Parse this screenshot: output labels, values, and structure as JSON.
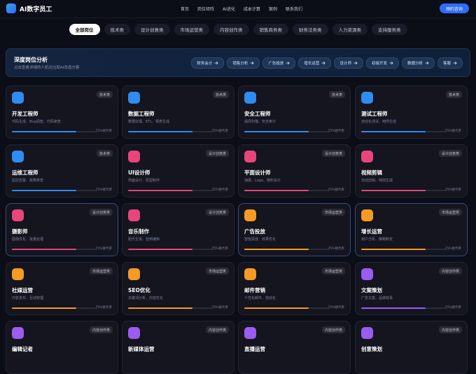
{
  "nav": {
    "logo": "AI数字员工",
    "links": [
      "首页",
      "岗位矩阵",
      "AI进化",
      "成本计算",
      "案例",
      "联系我们"
    ],
    "cta": "预约咨询"
  },
  "tabs": [
    "全部岗位",
    "技术类",
    "设计创意类",
    "市场运营类",
    "内容创作类",
    "销售商务类",
    "财务法务类",
    "人力资源类",
    "支持服务类"
  ],
  "banner": {
    "title": "深度岗位分析",
    "subtitle": "点击查看详细的人机对比和AI改造方案",
    "chips": [
      "财务会计",
      "销售分析",
      "广告投放",
      "增长运营",
      "设计师",
      "初级开发",
      "数据分析",
      "客服"
    ]
  },
  "cards": [
    {
      "name": "开发工程师",
      "category": "技术类",
      "desc": "代码生成、Bug调查、代码审查",
      "rate": 75,
      "rate_label": "75%替代率",
      "color": "#2f8cf0"
    },
    {
      "name": "数据工程师",
      "category": "技术类",
      "desc": "数据处理、ETL、报表生成",
      "rate": 75,
      "rate_label": "75%替代率",
      "color": "#2f8cf0"
    },
    {
      "name": "安全工程师",
      "category": "技术类",
      "desc": "漏洞扫描、安全审计",
      "rate": 75,
      "rate_label": "75%替代率",
      "color": "#2f8cf0"
    },
    {
      "name": "测试工程师",
      "category": "技术类",
      "desc": "自动化测试、用例生成",
      "rate": 75,
      "rate_label": "75%替代率",
      "color": "#2f8cf0"
    },
    {
      "name": "运维工程师",
      "category": "技术类",
      "desc": "监控告警、故障排查",
      "rate": 75,
      "rate_label": "75%替代率",
      "color": "#2f8cf0"
    },
    {
      "name": "UI设计师",
      "category": "设计创意类",
      "desc": "界面设计、原型制作",
      "rate": 75,
      "rate_label": "75%替代率",
      "color": "#e8457a"
    },
    {
      "name": "平面设计师",
      "category": "设计创意类",
      "desc": "海报、Logo、物料设计",
      "rate": 75,
      "rate_label": "75%替代率",
      "color": "#e8457a"
    },
    {
      "name": "视频剪辑",
      "category": "设计创意类",
      "desc": "自动剪辑、特效生成",
      "rate": 75,
      "rate_label": "75%替代率",
      "color": "#e8457a"
    },
    {
      "name": "摄影师",
      "category": "设计创意类",
      "desc": "图像优化、批量处理",
      "rate": 75,
      "rate_label": "75%替代率",
      "color": "#e8457a"
    },
    {
      "name": "音乐制作",
      "category": "设计创意类",
      "desc": "配乐生成、音频编辑",
      "rate": 75,
      "rate_label": "75%替代率",
      "color": "#e8457a"
    },
    {
      "name": "广告投放",
      "category": "市场运营类",
      "desc": "智能投放、效果优化",
      "rate": 75,
      "rate_label": "75%替代率",
      "color": "#f59a23"
    },
    {
      "name": "增长运营",
      "category": "市场运营类",
      "desc": "用户分析、策略制定",
      "rate": 75,
      "rate_label": "75%替代率",
      "color": "#f59a23"
    },
    {
      "name": "社媒运营",
      "category": "市场运营类",
      "desc": "内容发布、互动管理",
      "rate": 75,
      "rate_label": "75%替代率",
      "color": "#f59a23"
    },
    {
      "name": "SEO优化",
      "category": "市场运营类",
      "desc": "关键词分析、内容优化",
      "rate": 75,
      "rate_label": "75%替代率",
      "color": "#f59a23"
    },
    {
      "name": "邮件营销",
      "category": "市场运营类",
      "desc": "个性化邮件、自动化",
      "rate": 75,
      "rate_label": "75%替代率",
      "color": "#f59a23"
    },
    {
      "name": "文案策划",
      "category": "内容创作类",
      "desc": "广告文案、品牌故事",
      "rate": 75,
      "rate_label": "75%替代率",
      "color": "#9b5cf0"
    },
    {
      "name": "编辑记者",
      "category": "内容创作类",
      "color": "#9b5cf0"
    },
    {
      "name": "新媒体运营",
      "category": "内容创作类",
      "color": "#9b5cf0"
    },
    {
      "name": "直播运营",
      "category": "内容创作类",
      "color": "#9b5cf0"
    },
    {
      "name": "创意策划",
      "category": "内容创作类",
      "color": "#9b5cf0"
    }
  ]
}
